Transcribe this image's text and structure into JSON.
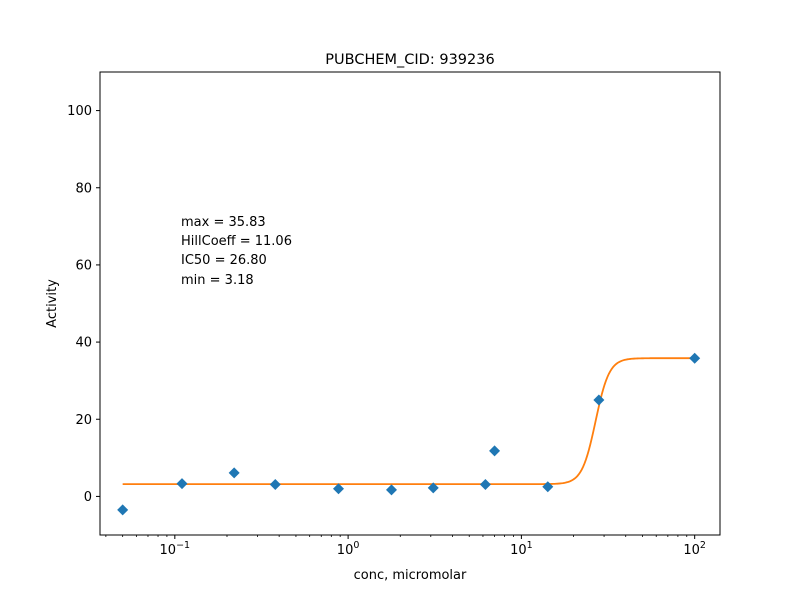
{
  "chart_data": {
    "type": "scatter",
    "title": "PUBCHEM_CID: 939236",
    "xlabel": "conc, micromolar",
    "ylabel": "Activity",
    "x_scale": "log",
    "xlim": [
      0.037,
      140
    ],
    "ylim": [
      -10,
      110
    ],
    "x_ticks": [
      {
        "value": 0.1,
        "base": "10",
        "exp": "−1"
      },
      {
        "value": 1,
        "base": "10",
        "exp": "0"
      },
      {
        "value": 10,
        "base": "10",
        "exp": "1"
      },
      {
        "value": 100,
        "base": "10",
        "exp": "2"
      }
    ],
    "y_ticks": [
      0,
      20,
      40,
      60,
      80,
      100
    ],
    "grid": false,
    "series": [
      {
        "marker": "diamond",
        "color": "#1f77b4",
        "x": [
          0.05,
          0.11,
          0.22,
          0.38,
          0.88,
          1.78,
          3.1,
          6.2,
          7.0,
          14.2,
          28.0,
          100.0
        ],
        "y": [
          -3.5,
          3.3,
          6.1,
          3.1,
          2.0,
          1.7,
          2.2,
          3.1,
          11.8,
          2.5,
          25.0,
          35.8
        ]
      }
    ],
    "fit_curve": {
      "type": "hill",
      "color": "#ff7f0e",
      "x_range": [
        0.05,
        100
      ],
      "max": 35.83,
      "min": 3.18,
      "ic50": 26.8,
      "hill": 11.06
    },
    "annotations": [
      "max = 35.83",
      "HillCoeff = 11.06",
      "IC50 = 26.80",
      "min = 3.18"
    ]
  }
}
